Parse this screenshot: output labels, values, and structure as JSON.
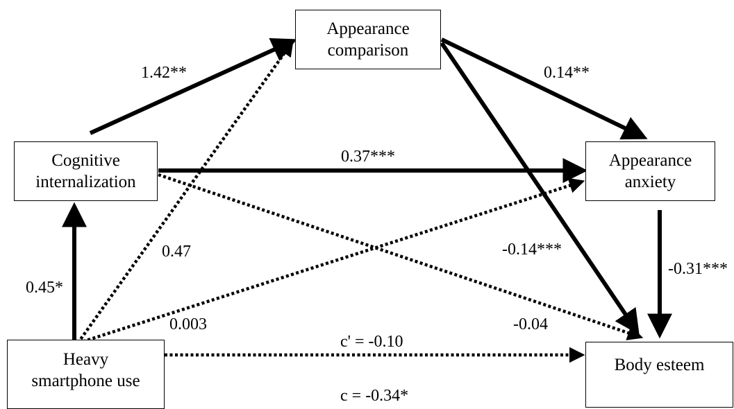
{
  "nodes": {
    "appearance_comparison": [
      "Appearance",
      "comparison"
    ],
    "cognitive_internalization": [
      "Cognitive",
      "internalization"
    ],
    "appearance_anxiety": [
      "Appearance",
      "anxiety"
    ],
    "heavy_smartphone_use": [
      "Heavy",
      "smartphone use"
    ],
    "body_esteem": [
      "Body esteem"
    ]
  },
  "paths": {
    "ci_to_ac": "1.42**",
    "ac_to_aa": "0.14**",
    "ci_to_aa": "0.37***",
    "hs_to_ci": "0.45*",
    "hs_to_ac": "0.47",
    "hs_to_aa": "0.003",
    "ac_to_be": "-0.14***",
    "aa_to_be": "-0.31***",
    "ci_to_be": "-0.04",
    "direct_effect": "c' = -0.10",
    "total_effect": "c = -0.34*"
  },
  "colors": {
    "line": "#000000",
    "background": "#ffffff"
  }
}
